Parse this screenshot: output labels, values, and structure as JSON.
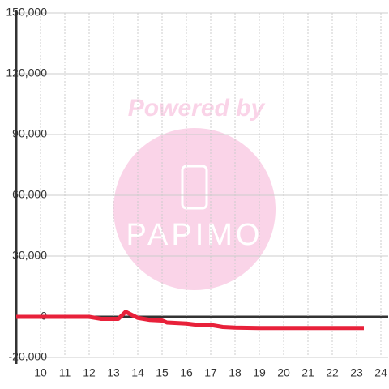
{
  "chart_data": {
    "type": "line",
    "watermark": {
      "title": "Powered by",
      "brand": "PAPIMO"
    },
    "x": [
      9,
      10,
      11,
      12,
      12.5,
      13.2,
      13.5,
      14,
      14.5,
      15,
      15.2,
      16,
      16.5,
      17,
      17.5,
      18,
      19,
      20,
      21,
      22,
      23.3
    ],
    "series": [
      {
        "color": "#e8213a",
        "values": [
          0,
          0,
          0,
          0,
          -1000,
          -1000,
          2500,
          -500,
          -1500,
          -1800,
          -2800,
          -3300,
          -4000,
          -4000,
          -5000,
          -5300,
          -5500,
          -5500,
          -5500,
          -5500,
          -5500
        ]
      }
    ],
    "xlim": [
      9,
      24.3
    ],
    "xticks": [
      10,
      11,
      12,
      13,
      14,
      15,
      16,
      17,
      18,
      19,
      20,
      21,
      22,
      23,
      24
    ],
    "ylim": [
      -20000,
      150000
    ],
    "yticks": [
      {
        "value": -20000,
        "label": "-20,000"
      },
      0,
      {
        "value": 30000,
        "label": "30,000"
      },
      {
        "value": 60000,
        "label": "60,000"
      },
      {
        "value": 90000,
        "label": "90,000"
      },
      {
        "value": 120000,
        "label": "120,000"
      },
      {
        "value": 150000,
        "label": "150,000"
      }
    ],
    "grid": true
  }
}
